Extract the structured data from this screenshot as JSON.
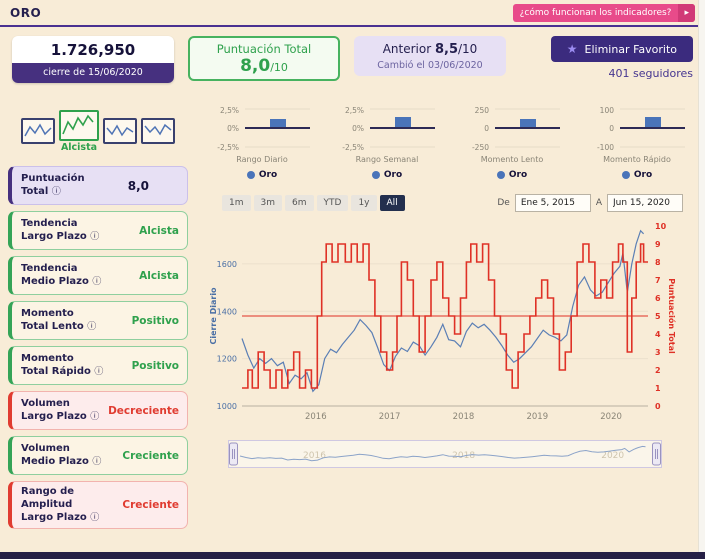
{
  "header": {
    "title": "ORO",
    "help_button": "¿cómo funcionan los indicadores?"
  },
  "summary": {
    "price": "1.726,950",
    "price_date": "cierre de 15/06/2020",
    "score_title": "Puntuación Total",
    "score_value": "8,0",
    "score_denom": "/10",
    "prev_label": "Anterior",
    "prev_value": "8,5",
    "prev_denom": "/10",
    "prev_change": "Cambió el 03/06/2020",
    "favorite_button": "Eliminar Favorito",
    "followers": "401 seguidores"
  },
  "sidebar": {
    "trend_label": "Alcista",
    "indicators": [
      {
        "line1": "Puntuación",
        "line2": "Total",
        "value": "8,0",
        "state": "score"
      },
      {
        "line1": "Tendencia",
        "line2": "Largo Plazo",
        "value": "Alcista",
        "state": "positive"
      },
      {
        "line1": "Tendencia",
        "line2": "Medio Plazo",
        "value": "Alcista",
        "state": "positive"
      },
      {
        "line1": "Momento",
        "line2": "Total Lento",
        "value": "Positivo",
        "state": "positive"
      },
      {
        "line1": "Momento",
        "line2": "Total Rápido",
        "value": "Positivo",
        "state": "positive"
      },
      {
        "line1": "Volumen",
        "line2": "Largo Plazo",
        "value": "Decreciente",
        "state": "negative"
      },
      {
        "line1": "Volumen",
        "line2": "Medio Plazo",
        "value": "Creciente",
        "state": "positive"
      },
      {
        "line1": "Rango de Amplitud",
        "line2": "Largo Plazo",
        "value": "Creciente",
        "state": "negative"
      }
    ]
  },
  "gauges": [
    {
      "title": "Rango Diario",
      "max": "2,5%",
      "zero": "0%",
      "min": "-2,5%",
      "legend": "Oro",
      "bar_ratio": 0.55
    },
    {
      "title": "Rango Semanal",
      "max": "2,5%",
      "zero": "0%",
      "min": "-2,5%",
      "legend": "Oro",
      "bar_ratio": 0.62
    },
    {
      "title": "Momento Lento",
      "max": "250",
      "zero": "0",
      "min": "-250",
      "legend": "Oro",
      "bar_ratio": 0.55
    },
    {
      "title": "Momento Rápido",
      "max": "100",
      "zero": "0",
      "min": "-100",
      "legend": "Oro",
      "bar_ratio": 0.62
    }
  ],
  "chart": {
    "range_buttons": [
      {
        "label": "1m",
        "active": false
      },
      {
        "label": "3m",
        "active": false
      },
      {
        "label": "6m",
        "active": false
      },
      {
        "label": "YTD",
        "active": false
      },
      {
        "label": "1y",
        "active": false
      },
      {
        "label": "All",
        "active": true
      }
    ],
    "from_label": "De",
    "from_value": "Ene 5, 2015",
    "to_label": "A",
    "to_value": "Jun 15, 2020"
  },
  "chart_data": {
    "type": "line",
    "x_range": [
      2015.0,
      2020.5
    ],
    "x_ticks": [
      2016,
      2017,
      2018,
      2019,
      2020
    ],
    "left_axis": {
      "label": "Cierre Diario",
      "min": 1000,
      "max": 1760,
      "ticks": [
        1000,
        1200,
        1400,
        1600
      ],
      "color": "#4a6fa5"
    },
    "right_axis": {
      "label": "Puntuación Total",
      "min": 0,
      "max": 10,
      "ticks": [
        0,
        1,
        2,
        3,
        4,
        5,
        6,
        7,
        8,
        9,
        10
      ],
      "color": "#df3126"
    },
    "reference_line": 5,
    "navigator_years": [
      "2016",
      "2018",
      "2020"
    ],
    "series": [
      {
        "name": "Cierre Diario",
        "axis": "left",
        "color": "#5b7fb5",
        "style": "line",
        "points": [
          [
            2015.0,
            1285
          ],
          [
            2015.08,
            1215
          ],
          [
            2015.16,
            1160
          ],
          [
            2015.24,
            1200
          ],
          [
            2015.32,
            1180
          ],
          [
            2015.4,
            1200
          ],
          [
            2015.48,
            1170
          ],
          [
            2015.56,
            1185
          ],
          [
            2015.64,
            1095
          ],
          [
            2015.72,
            1130
          ],
          [
            2015.8,
            1115
          ],
          [
            2015.88,
            1140
          ],
          [
            2015.96,
            1062
          ],
          [
            2016.04,
            1090
          ],
          [
            2016.12,
            1200
          ],
          [
            2016.2,
            1240
          ],
          [
            2016.28,
            1225
          ],
          [
            2016.36,
            1260
          ],
          [
            2016.44,
            1290
          ],
          [
            2016.52,
            1320
          ],
          [
            2016.6,
            1365
          ],
          [
            2016.68,
            1340
          ],
          [
            2016.76,
            1310
          ],
          [
            2016.84,
            1245
          ],
          [
            2016.92,
            1175
          ],
          [
            2017.0,
            1150
          ],
          [
            2017.08,
            1210
          ],
          [
            2017.16,
            1245
          ],
          [
            2017.24,
            1230
          ],
          [
            2017.32,
            1270
          ],
          [
            2017.4,
            1255
          ],
          [
            2017.48,
            1215
          ],
          [
            2017.56,
            1250
          ],
          [
            2017.64,
            1290
          ],
          [
            2017.72,
            1345
          ],
          [
            2017.8,
            1280
          ],
          [
            2017.88,
            1275
          ],
          [
            2017.96,
            1250
          ],
          [
            2018.04,
            1315
          ],
          [
            2018.12,
            1350
          ],
          [
            2018.2,
            1330
          ],
          [
            2018.28,
            1345
          ],
          [
            2018.36,
            1320
          ],
          [
            2018.44,
            1290
          ],
          [
            2018.52,
            1255
          ],
          [
            2018.6,
            1215
          ],
          [
            2018.68,
            1185
          ],
          [
            2018.76,
            1200
          ],
          [
            2018.84,
            1225
          ],
          [
            2018.92,
            1250
          ],
          [
            2019.0,
            1285
          ],
          [
            2019.08,
            1320
          ],
          [
            2019.16,
            1300
          ],
          [
            2019.24,
            1290
          ],
          [
            2019.32,
            1275
          ],
          [
            2019.4,
            1300
          ],
          [
            2019.48,
            1420
          ],
          [
            2019.56,
            1510
          ],
          [
            2019.64,
            1545
          ],
          [
            2019.72,
            1490
          ],
          [
            2019.8,
            1465
          ],
          [
            2019.88,
            1480
          ],
          [
            2019.96,
            1520
          ],
          [
            2020.04,
            1560
          ],
          [
            2020.12,
            1590
          ],
          [
            2020.16,
            1645
          ],
          [
            2020.22,
            1480
          ],
          [
            2020.28,
            1600
          ],
          [
            2020.34,
            1685
          ],
          [
            2020.4,
            1740
          ],
          [
            2020.44,
            1727
          ]
        ]
      },
      {
        "name": "Puntuación Total",
        "axis": "right",
        "color": "#df3126",
        "style": "step",
        "points": [
          [
            2015.0,
            1
          ],
          [
            2015.08,
            2
          ],
          [
            2015.14,
            1
          ],
          [
            2015.22,
            3
          ],
          [
            2015.3,
            2
          ],
          [
            2015.38,
            1
          ],
          [
            2015.46,
            2
          ],
          [
            2015.54,
            1
          ],
          [
            2015.62,
            2
          ],
          [
            2015.7,
            3
          ],
          [
            2015.78,
            1
          ],
          [
            2015.86,
            2
          ],
          [
            2015.94,
            1
          ],
          [
            2016.02,
            5
          ],
          [
            2016.08,
            8
          ],
          [
            2016.14,
            9
          ],
          [
            2016.22,
            8
          ],
          [
            2016.3,
            9
          ],
          [
            2016.4,
            8
          ],
          [
            2016.48,
            9
          ],
          [
            2016.56,
            8
          ],
          [
            2016.64,
            9
          ],
          [
            2016.72,
            7
          ],
          [
            2016.8,
            5
          ],
          [
            2016.88,
            3
          ],
          [
            2016.96,
            2
          ],
          [
            2017.04,
            3
          ],
          [
            2017.1,
            5
          ],
          [
            2017.16,
            8
          ],
          [
            2017.24,
            7
          ],
          [
            2017.32,
            5
          ],
          [
            2017.4,
            3
          ],
          [
            2017.48,
            5
          ],
          [
            2017.56,
            7
          ],
          [
            2017.64,
            8
          ],
          [
            2017.72,
            6
          ],
          [
            2017.8,
            5
          ],
          [
            2017.88,
            4
          ],
          [
            2017.96,
            6
          ],
          [
            2018.04,
            8
          ],
          [
            2018.1,
            9
          ],
          [
            2018.18,
            8
          ],
          [
            2018.26,
            9
          ],
          [
            2018.34,
            7
          ],
          [
            2018.42,
            5
          ],
          [
            2018.5,
            4
          ],
          [
            2018.58,
            2
          ],
          [
            2018.66,
            1
          ],
          [
            2018.74,
            3
          ],
          [
            2018.82,
            4
          ],
          [
            2018.9,
            5
          ],
          [
            2018.98,
            6
          ],
          [
            2019.06,
            7
          ],
          [
            2019.14,
            6
          ],
          [
            2019.22,
            4
          ],
          [
            2019.3,
            2
          ],
          [
            2019.38,
            3
          ],
          [
            2019.46,
            5
          ],
          [
            2019.54,
            8
          ],
          [
            2019.62,
            9
          ],
          [
            2019.7,
            8
          ],
          [
            2019.78,
            6
          ],
          [
            2019.86,
            7
          ],
          [
            2019.94,
            6
          ],
          [
            2020.02,
            8
          ],
          [
            2020.1,
            9
          ],
          [
            2020.16,
            8
          ],
          [
            2020.22,
            3
          ],
          [
            2020.28,
            6
          ],
          [
            2020.34,
            8
          ],
          [
            2020.4,
            9
          ],
          [
            2020.44,
            8
          ]
        ]
      }
    ]
  },
  "colors": {
    "accent_pink": "#e84b8a",
    "purple": "#46307f",
    "green": "#2fa14d",
    "red": "#e03c31",
    "blue": "#4a74b9",
    "cream": "#f8ecd7"
  }
}
